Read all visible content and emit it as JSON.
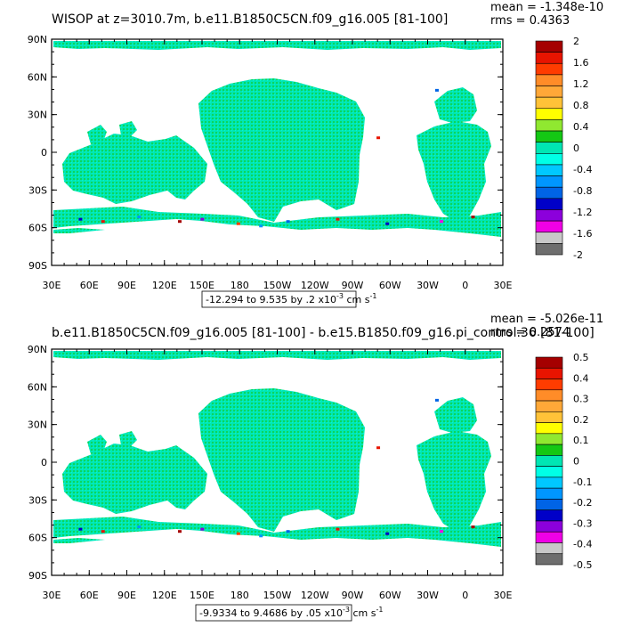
{
  "chart_data": [
    {
      "type": "heatmap",
      "title": "WISOP at z=3010.7m, b.e11.B1850C5CN.f09_g16.005 [81-100]",
      "stats": {
        "mean": "mean = -1.348e-10",
        "rms": "rms = 0.4363"
      },
      "range_label": "-12.294 to 9.535 by .2 x10",
      "range_exp": "-3",
      "range_unit": " cm s",
      "range_unit_exp": "-1",
      "y_ticks": [
        "90N",
        "60N",
        "30N",
        "0",
        "30S",
        "60S",
        "90S"
      ],
      "x_ticks": [
        "30E",
        "60E",
        "90E",
        "120E",
        "150E",
        "180",
        "150W",
        "120W",
        "90W",
        "60W",
        "30W",
        "0",
        "30E"
      ],
      "colorbar_labels": [
        "2",
        "1.6",
        "1.2",
        "0.8",
        "0.4",
        "0",
        "-0.4",
        "-0.8",
        "-1.2",
        "-1.6",
        "-2"
      ],
      "colorbar_colors": [
        "#a50000",
        "#e81400",
        "#ff3c00",
        "#ff8c28",
        "#ffa838",
        "#ffc238",
        "#ffff00",
        "#90e830",
        "#14c814",
        "#00e6b4",
        "#00ffe6",
        "#00c8ff",
        "#0096ff",
        "#0064e6",
        "#0000c8",
        "#8c00dc",
        "#f000e6",
        "#c8c8c8",
        "#6e6e6e"
      ]
    },
    {
      "type": "heatmap",
      "title": "b.e11.B1850C5CN.f09_g16.005 [81-100] - b.e15.B1850.f09_g16.pi_control.36 [81-100]",
      "stats": {
        "mean": "mean = -5.026e-11",
        "rms": "rms = 0.2574"
      },
      "range_label": "-9.9334 to 9.4686 by .05 x10",
      "range_exp": "-3",
      "range_unit": " cm s",
      "range_unit_exp": "-1",
      "y_ticks": [
        "90N",
        "60N",
        "30N",
        "0",
        "30S",
        "60S",
        "90S"
      ],
      "x_ticks": [
        "30E",
        "60E",
        "90E",
        "120E",
        "150E",
        "180",
        "150W",
        "120W",
        "90W",
        "60W",
        "30W",
        "0",
        "30E"
      ],
      "colorbar_labels": [
        "0.5",
        "0.4",
        "0.3",
        "0.2",
        "0.1",
        "0",
        "-0.1",
        "-0.2",
        "-0.3",
        "-0.4",
        "-0.5"
      ],
      "colorbar_colors": [
        "#a50000",
        "#e81400",
        "#ff3c00",
        "#ff8c28",
        "#ffa838",
        "#ffc238",
        "#ffff00",
        "#90e830",
        "#14c814",
        "#00e6b4",
        "#00ffe6",
        "#00c8ff",
        "#0096ff",
        "#0064e6",
        "#0000c8",
        "#8c00dc",
        "#f000e6",
        "#c8c8c8",
        "#6e6e6e"
      ]
    }
  ],
  "colors": {
    "ocean_field": "#00e6b4",
    "ocean_field_alt": "#14c814",
    "land": "#ffffff",
    "frame": "#000000"
  }
}
